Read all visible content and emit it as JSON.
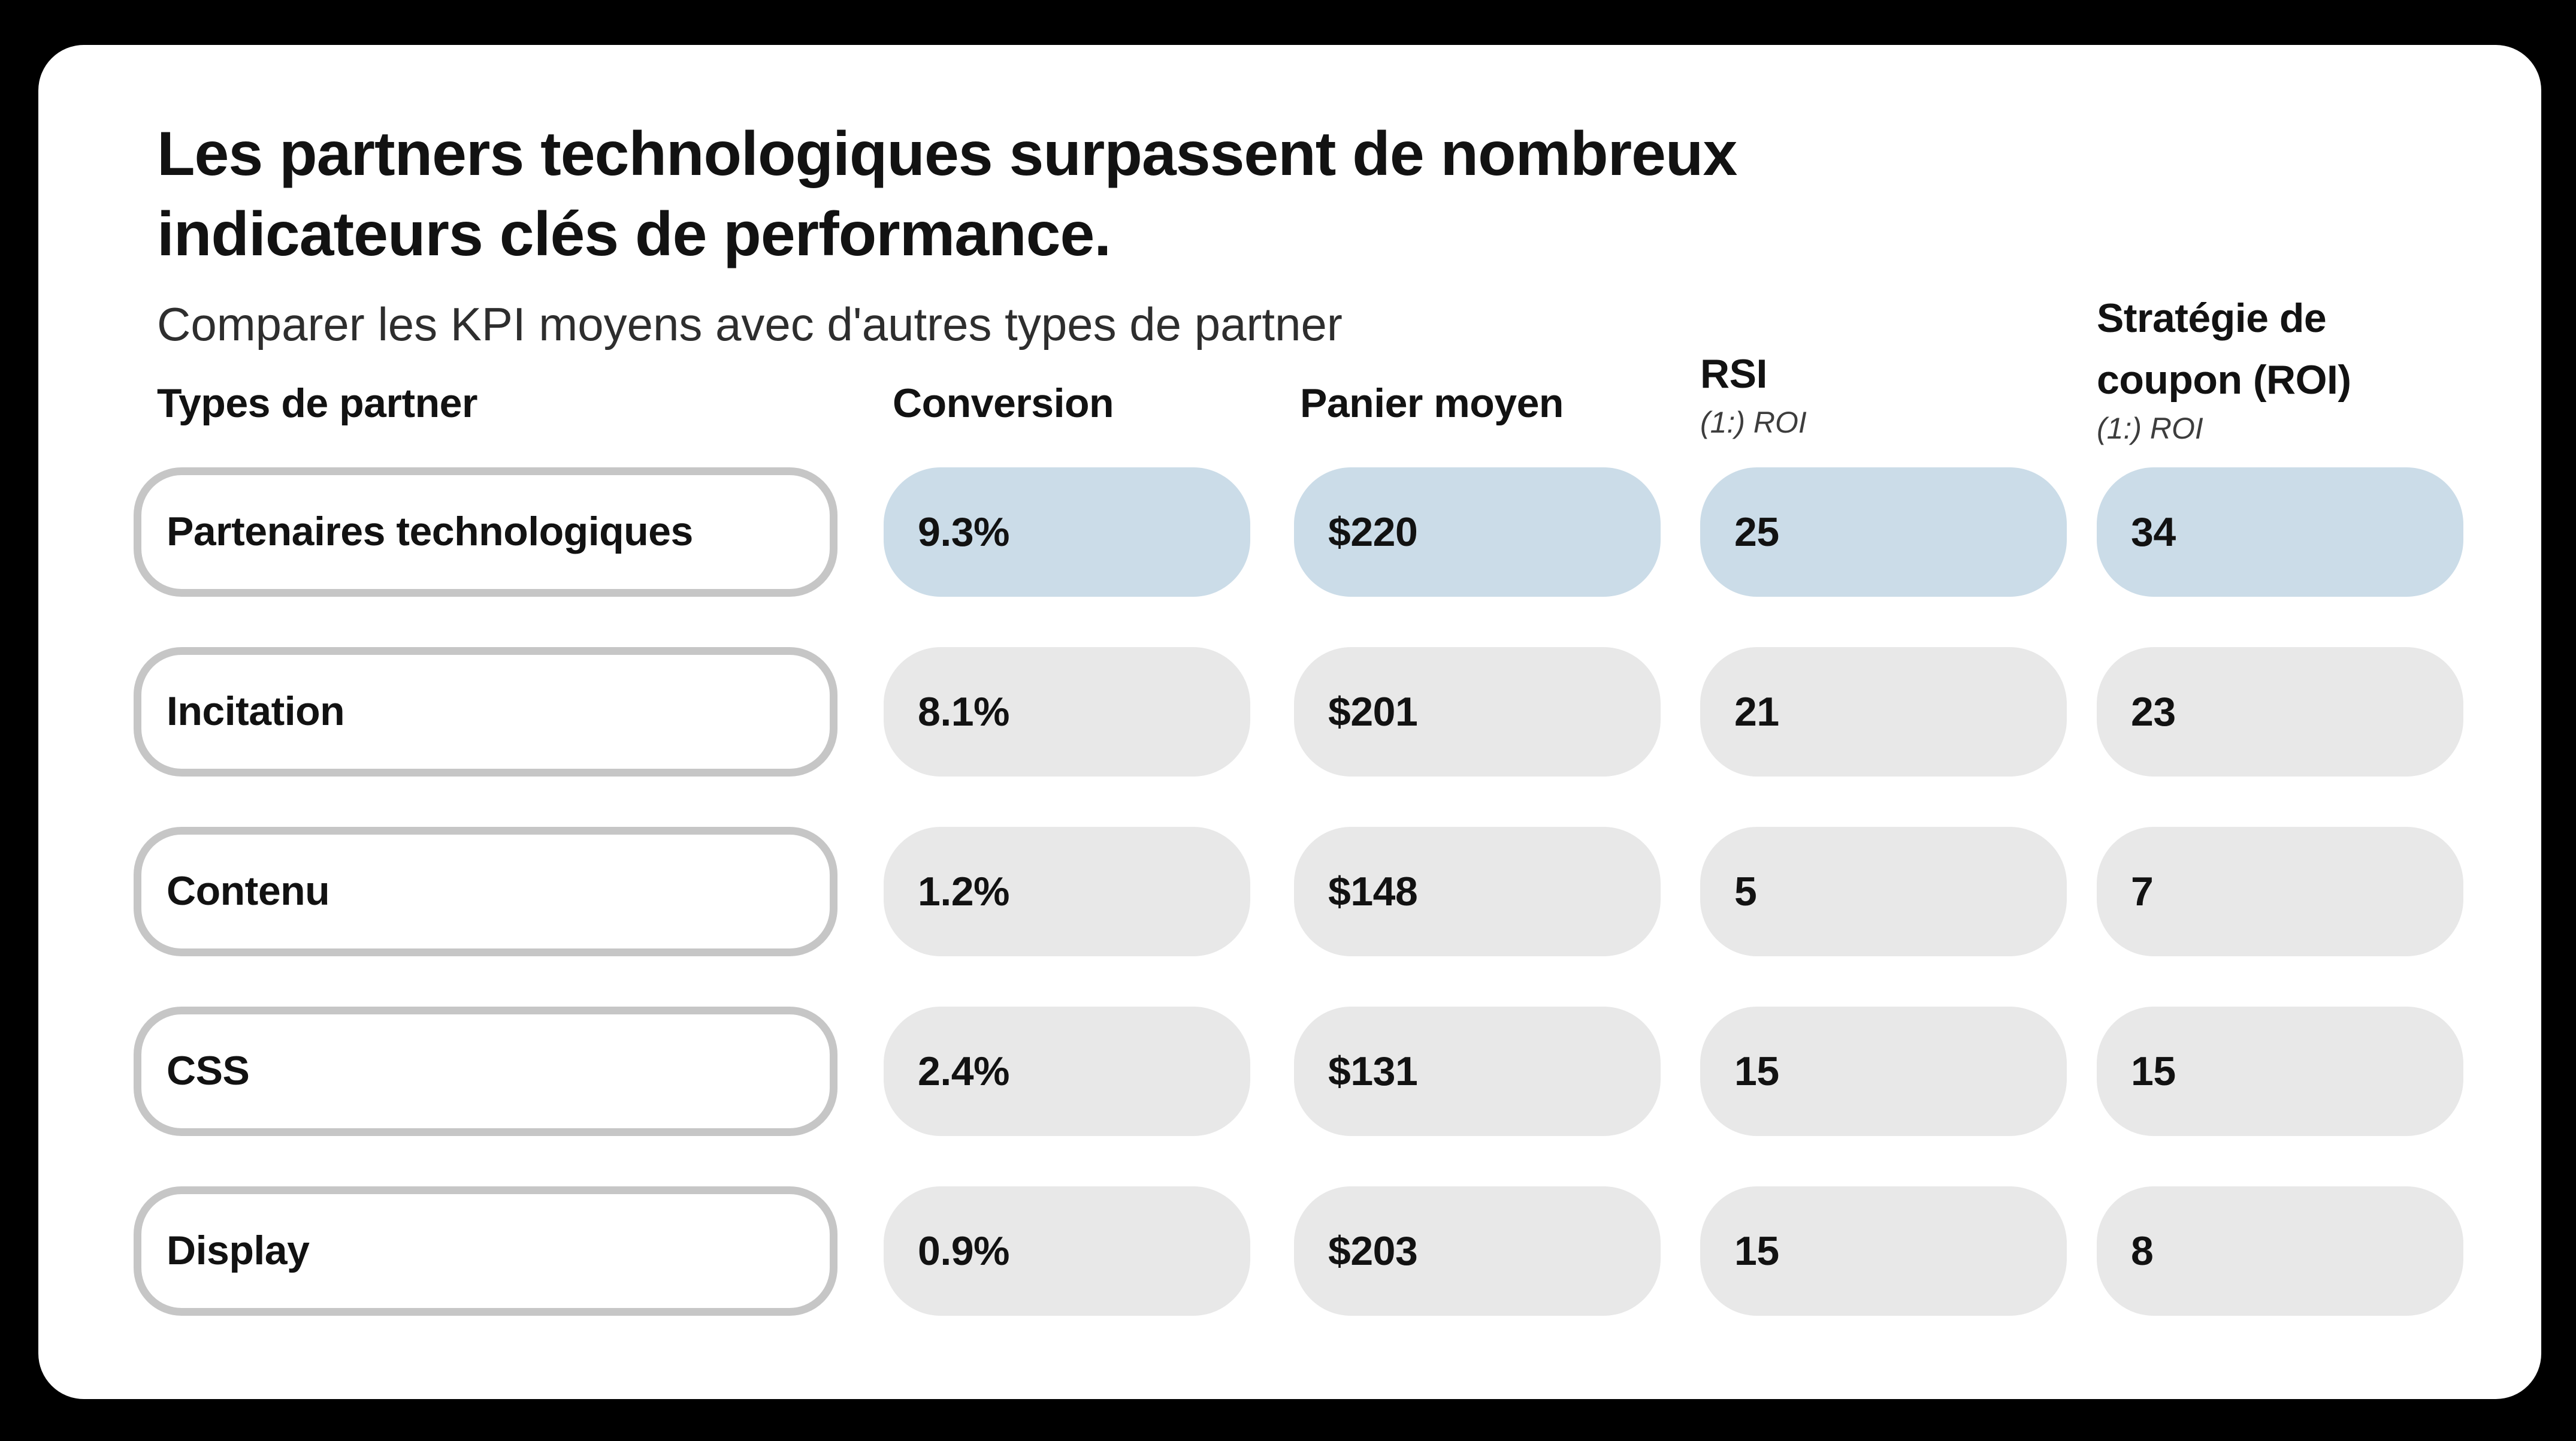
{
  "header": {
    "title_line1": "Les partners technologiques surpassent de nombreux",
    "title_line2": "indicateurs clés de performance.",
    "subtitle": "Comparer les KPI moyens avec d'autres types de partner"
  },
  "columns": {
    "partner_type": "Types de partner",
    "conversion": "Conversion",
    "basket": "Panier moyen",
    "rsi": "RSI",
    "rsi_sublabel": "(1:) ROI",
    "coupon": "Stratégie de coupon (ROI)",
    "coupon_sublabel": "(1:) ROI"
  },
  "colors": {
    "page_background": "#000000",
    "card_background": "#ffffff",
    "highlight_pill": "#cbdce8",
    "default_pill": "#e8e8e8",
    "label_pill_border": "#c6c6c6",
    "text": "#121212"
  },
  "chart_data": {
    "type": "table",
    "title": "Les partners technologiques surpassent de nombreux indicateurs clés de performance.",
    "subtitle": "Comparer les KPI moyens avec d'autres types de partner",
    "columns": [
      "Types de partner",
      "Conversion",
      "Panier moyen",
      "RSI (1:) ROI",
      "Stratégie de coupon (ROI) (1:) ROI"
    ],
    "highlighted_row": "Partenaires technologiques",
    "rows": [
      {
        "label": "Partenaires technologiques",
        "highlighted": true,
        "values": [
          "9.3%",
          "$220",
          "25",
          "34"
        ]
      },
      {
        "label": "Incitation",
        "highlighted": false,
        "values": [
          "8.1%",
          "$201",
          "21",
          "23"
        ]
      },
      {
        "label": "Contenu",
        "highlighted": false,
        "values": [
          "1.2%",
          "$148",
          "5",
          "7"
        ]
      },
      {
        "label": "CSS",
        "highlighted": false,
        "values": [
          "2.4%",
          "$131",
          "15",
          "15"
        ]
      },
      {
        "label": "Display",
        "highlighted": false,
        "values": [
          "0.9%",
          "$203",
          "15",
          "8"
        ]
      }
    ]
  }
}
